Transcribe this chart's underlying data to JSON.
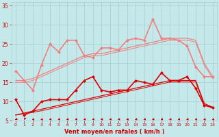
{
  "xlabel": "Vent moyen/en rafales ( km/h )",
  "xlim": [
    -0.5,
    23.5
  ],
  "ylim": [
    5,
    36
  ],
  "yticks": [
    5,
    10,
    15,
    20,
    25,
    30,
    35
  ],
  "xticks": [
    0,
    1,
    2,
    3,
    4,
    5,
    6,
    7,
    8,
    9,
    10,
    11,
    12,
    13,
    14,
    15,
    16,
    17,
    18,
    19,
    20,
    21,
    22,
    23
  ],
  "bg_color": "#c5e8ea",
  "grid_color": "#a0cdd0",
  "series": [
    {
      "y": [
        10.5,
        6.5,
        7.5,
        10.0,
        10.5,
        10.5,
        10.5,
        13.0,
        15.5,
        16.5,
        13.0,
        12.5,
        13.0,
        13.0,
        15.5,
        15.0,
        14.5,
        17.5,
        15.5,
        15.5,
        16.5,
        13.5,
        9.0,
        8.5
      ],
      "color": "#dd0000",
      "lw": 1.2,
      "marker": "D",
      "ms": 2.0,
      "zorder": 6
    },
    {
      "y": [
        6.5,
        7.0,
        7.5,
        8.0,
        8.5,
        9.0,
        9.5,
        10.0,
        10.5,
        11.0,
        11.5,
        12.0,
        12.5,
        13.0,
        13.5,
        14.0,
        14.5,
        15.0,
        15.5,
        15.5,
        15.5,
        15.5,
        9.5,
        8.5
      ],
      "color": "#dd0000",
      "lw": 0.9,
      "marker": null,
      "ms": 0,
      "zorder": 4
    },
    {
      "y": [
        6.5,
        6.8,
        7.2,
        7.6,
        8.1,
        8.6,
        9.1,
        9.6,
        10.1,
        10.6,
        11.1,
        11.6,
        12.1,
        12.6,
        13.1,
        13.6,
        14.1,
        14.6,
        15.1,
        15.1,
        15.1,
        15.1,
        9.2,
        8.2
      ],
      "color": "#dd0000",
      "lw": 0.7,
      "marker": null,
      "ms": 0,
      "zorder": 3
    },
    {
      "y": [
        18.0,
        15.5,
        13.0,
        19.5,
        25.0,
        23.0,
        26.0,
        26.0,
        22.0,
        21.5,
        24.0,
        24.0,
        23.5,
        26.0,
        26.5,
        26.0,
        31.5,
        26.5,
        26.5,
        26.0,
        24.5,
        19.0,
        16.5,
        16.5
      ],
      "color": "#f08080",
      "lw": 1.2,
      "marker": "D",
      "ms": 2.0,
      "zorder": 6
    },
    {
      "y": [
        15.5,
        15.5,
        16.0,
        17.0,
        18.0,
        19.0,
        20.0,
        21.0,
        22.0,
        22.5,
        22.5,
        23.0,
        23.5,
        24.0,
        24.5,
        25.0,
        25.5,
        26.0,
        26.5,
        26.5,
        26.5,
        26.0,
        20.0,
        16.5
      ],
      "color": "#f08080",
      "lw": 0.9,
      "marker": null,
      "ms": 0,
      "zorder": 4
    },
    {
      "y": [
        15.0,
        15.0,
        15.5,
        16.5,
        17.5,
        18.5,
        19.5,
        20.5,
        21.5,
        22.0,
        22.0,
        22.5,
        23.0,
        23.5,
        24.0,
        24.5,
        25.0,
        25.5,
        26.0,
        26.0,
        26.0,
        25.5,
        19.5,
        16.0
      ],
      "color": "#f08080",
      "lw": 0.7,
      "marker": null,
      "ms": 0,
      "zorder": 3
    }
  ],
  "arrow_angles": [
    225,
    200,
    270,
    270,
    250,
    250,
    250,
    250,
    250,
    250,
    250,
    250,
    250,
    260,
    250,
    250,
    250,
    250,
    250,
    250,
    250,
    250,
    270,
    270
  ],
  "arrow_color": "#cc0000",
  "xlabel_color": "#cc0000",
  "tick_color": "#cc0000"
}
